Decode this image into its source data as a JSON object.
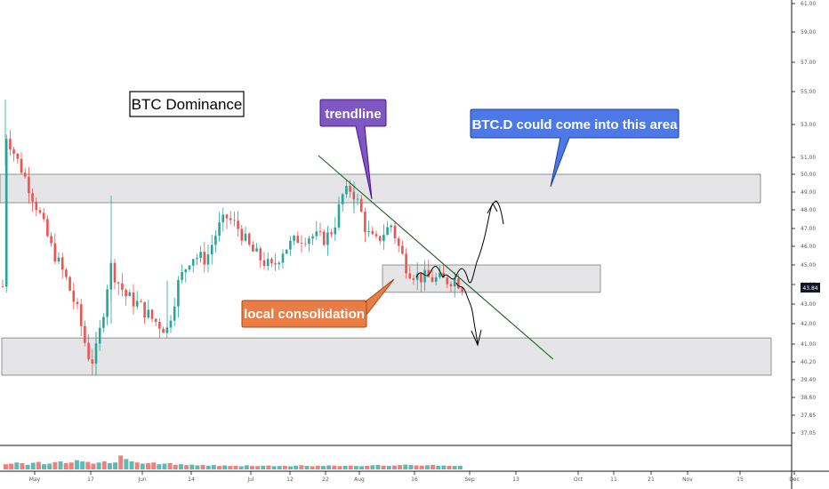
{
  "chart_data": {
    "type": "candlestick",
    "title": "BTC Dominance",
    "ylim": [
      36.7,
      61.3
    ],
    "y_ticks": [
      "61.00",
      "59.00",
      "57.00",
      "55.00",
      "53.00",
      "51.00",
      "50.00",
      "49.00",
      "48.00",
      "47.00",
      "46.00",
      "45.00",
      "44.00",
      "43.00",
      "42.00",
      "41.00",
      "40.20",
      "39.40",
      "38.60",
      "37.85",
      "37.05"
    ],
    "x_ticks": [
      "May",
      "17",
      "Jun",
      "14",
      "Jul",
      "12",
      "22",
      "Aug",
      "16",
      "Sep",
      "13",
      "Oct",
      "11",
      "21",
      "Nov",
      "15",
      "Dec"
    ],
    "current_price": "43.84",
    "current_price_color": "#131722",
    "up_color": "#26a69a",
    "down_color": "#ef5350",
    "zones": [
      {
        "name": "upper-resistance-zone",
        "low": 48.4,
        "high": 50.0
      },
      {
        "name": "local-consolidation-zone",
        "low": 43.6,
        "high": 45.0
      },
      {
        "name": "lower-support-zone",
        "low": 39.6,
        "high": 41.3
      }
    ],
    "trendline": {
      "from": {
        "x": "Jul 23",
        "y": 51.3
      },
      "to": {
        "x": "Sep 18",
        "y": 40.4
      },
      "color": "#1b5e20"
    },
    "annotations": [
      {
        "text": "BTC Dominance",
        "bg": "#ffffff",
        "border": "#000000",
        "fg": "#000000"
      },
      {
        "text": "trendline",
        "bg": "#7e57c2",
        "border": "#4a148c",
        "fg": "#ffffff"
      },
      {
        "text": "BTC.D could come into this area",
        "bg": "#4d79e8",
        "border": "#1a3fa8",
        "fg": "#ffffff"
      },
      {
        "text": "local consolidation",
        "bg": "#ea7d45",
        "border": "#a34713",
        "fg": "#ffffff"
      }
    ],
    "volume": [
      4.5,
      5.0,
      6.0,
      5.5,
      4.0,
      5.8,
      6.5,
      4.5,
      5.0,
      6.2,
      7.0,
      5.5,
      6.0,
      8.0,
      7.0,
      6.5,
      5.0,
      6.0,
      7.0,
      5.5,
      6.0,
      12.0,
      9.0,
      7.0,
      6.0,
      5.0,
      5.5,
      6.0,
      4.5,
      5.0,
      5.5,
      4.0,
      4.5,
      3.8,
      4.2,
      3.5,
      4.0,
      3.2,
      3.8,
      3.0,
      3.5,
      3.0,
      3.2,
      2.8,
      3.6,
      3.0,
      2.9,
      3.2,
      3.4,
      2.8,
      3.0,
      3.1,
      2.7,
      3.3,
      3.6,
      3.1,
      2.8,
      3.2,
      3.0,
      3.5,
      3.3,
      2.9,
      3.2,
      3.4,
      3.0,
      2.8,
      3.1,
      3.6,
      3.9,
      3.3,
      3.1,
      3.4,
      3.8,
      4.2,
      3.9,
      3.5,
      3.3,
      3.6,
      3.9,
      3.2,
      3.4,
      3.1,
      3.0,
      3.2
    ]
  }
}
